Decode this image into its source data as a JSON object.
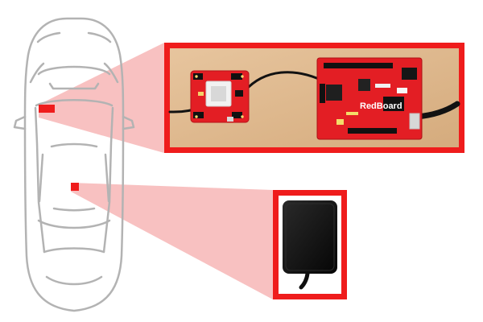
{
  "diagram": {
    "board_label": "RedBoard",
    "colors": {
      "accent_red": "#ef1c1c",
      "callout_fill": "#f7b8b8",
      "car_outline": "#b3b3b3",
      "board_red": "#e31e24",
      "wood_background": "#ddb58a",
      "antenna_black": "#161616"
    },
    "icons": {
      "car": "car-top-view-icon",
      "gps_module": "gps-module-icon",
      "microcontroller": "redboard-icon",
      "antenna": "gps-antenna-icon"
    }
  }
}
